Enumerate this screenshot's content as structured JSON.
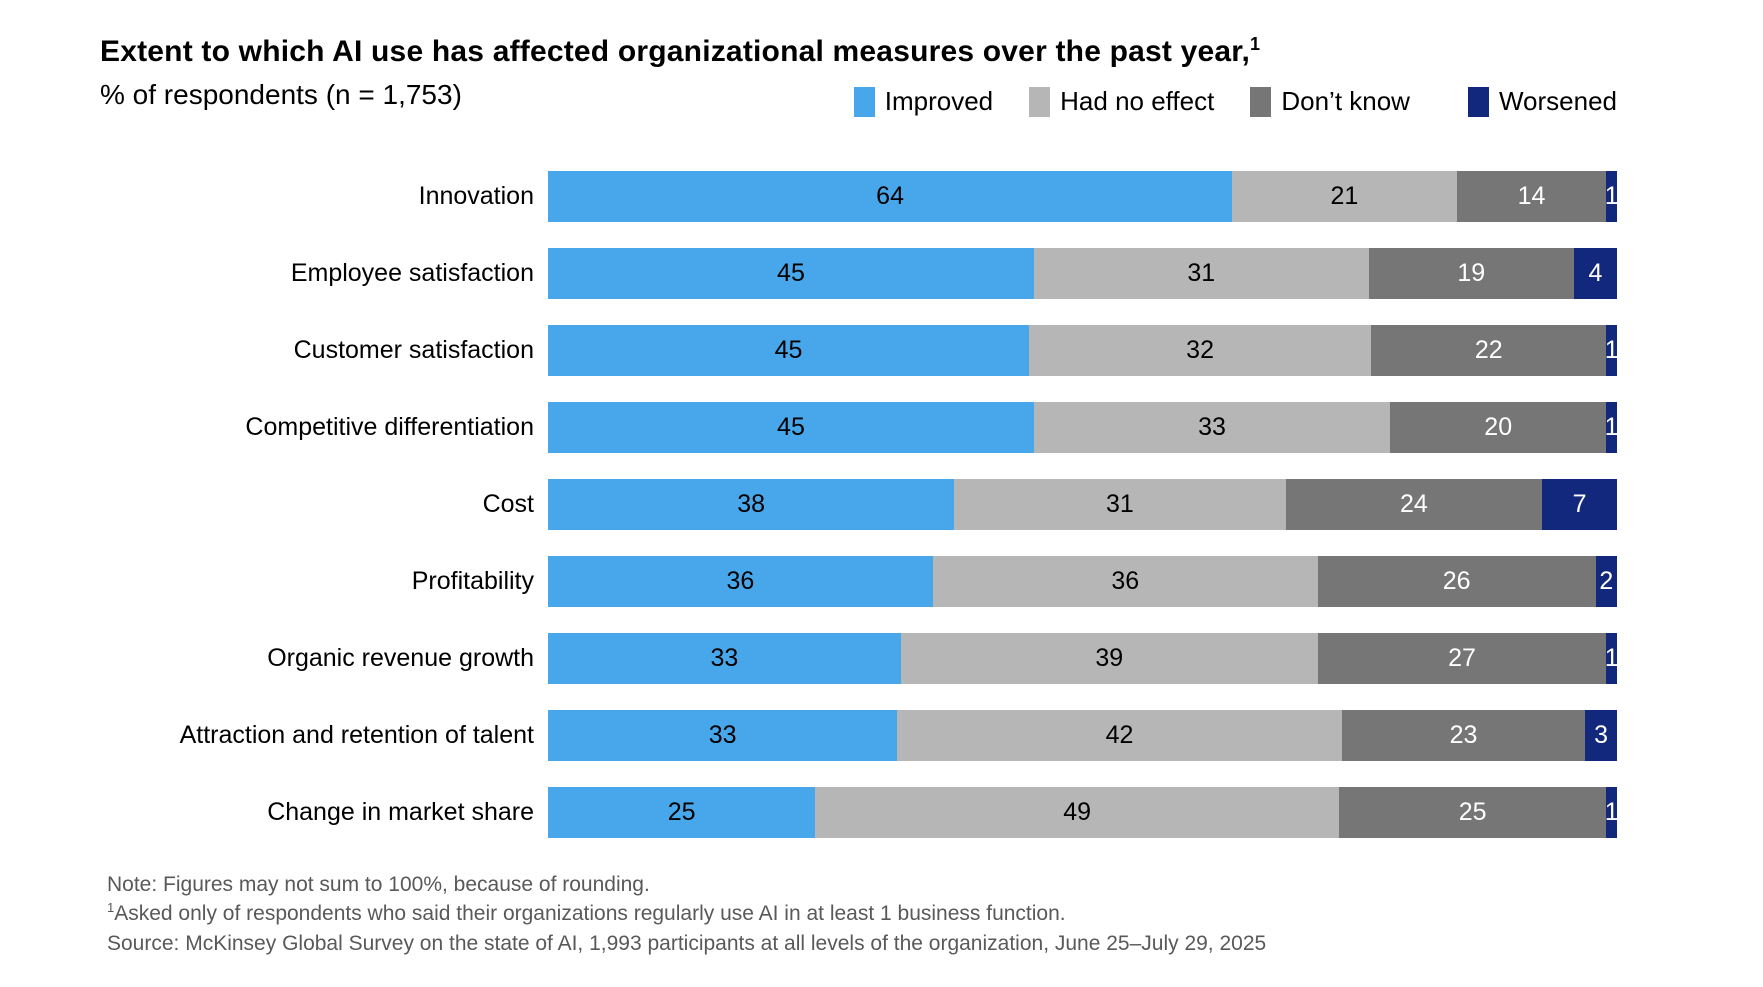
{
  "header": {
    "title": "Extent to which AI use has affected organizational measures over the past year,",
    "title_footnote_marker": "1",
    "subtitle": "% of respondents (n = 1,753)"
  },
  "legend": {
    "items": [
      {
        "label": "Improved",
        "color": "#48A7EB"
      },
      {
        "label": "Had no effect",
        "color": "#B6B6B6"
      },
      {
        "label": "Don’t know",
        "color": "#767676"
      },
      {
        "label": "Worsened",
        "color": "#12287C"
      }
    ]
  },
  "chart_data": {
    "type": "bar",
    "orientation": "horizontal",
    "stacked": true,
    "title": "Extent to which AI use has affected organizational measures over the past year",
    "units": "% of respondents",
    "xlim": [
      0,
      100
    ],
    "grid": false,
    "legend_position": "top-right",
    "categories": [
      "Innovation",
      "Employee satisfaction",
      "Customer satisfaction",
      "Competitive differentiation",
      "Cost",
      "Profitability",
      "Organic revenue growth",
      "Attraction and retention of talent",
      "Change in market share"
    ],
    "series": [
      {
        "name": "Improved",
        "color": "#48A7EB",
        "label_color": "#000000",
        "values": [
          64,
          45,
          45,
          45,
          38,
          36,
          33,
          33,
          25
        ]
      },
      {
        "name": "Had no effect",
        "color": "#B6B6B6",
        "label_color": "#000000",
        "values": [
          21,
          31,
          32,
          33,
          31,
          36,
          39,
          42,
          49
        ]
      },
      {
        "name": "Don’t know",
        "color": "#767676",
        "label_color": "#FFFFFF",
        "values": [
          14,
          19,
          22,
          20,
          24,
          26,
          27,
          23,
          25
        ]
      },
      {
        "name": "Worsened",
        "color": "#12287C",
        "label_color": "#FFFFFF",
        "values": [
          1,
          4,
          1,
          1,
          7,
          2,
          1,
          3,
          1
        ]
      }
    ]
  },
  "footnotes": {
    "note": "Note: Figures may not sum to 100%, because of rounding.",
    "footnote_marker": "1",
    "footnote": "Asked only of respondents who said their organizations regularly use AI in at least 1 business function.",
    "source": "Source: McKinsey Global Survey on the state of AI, 1,993 participants at all levels of the organization, June 25–July 29, 2025"
  }
}
